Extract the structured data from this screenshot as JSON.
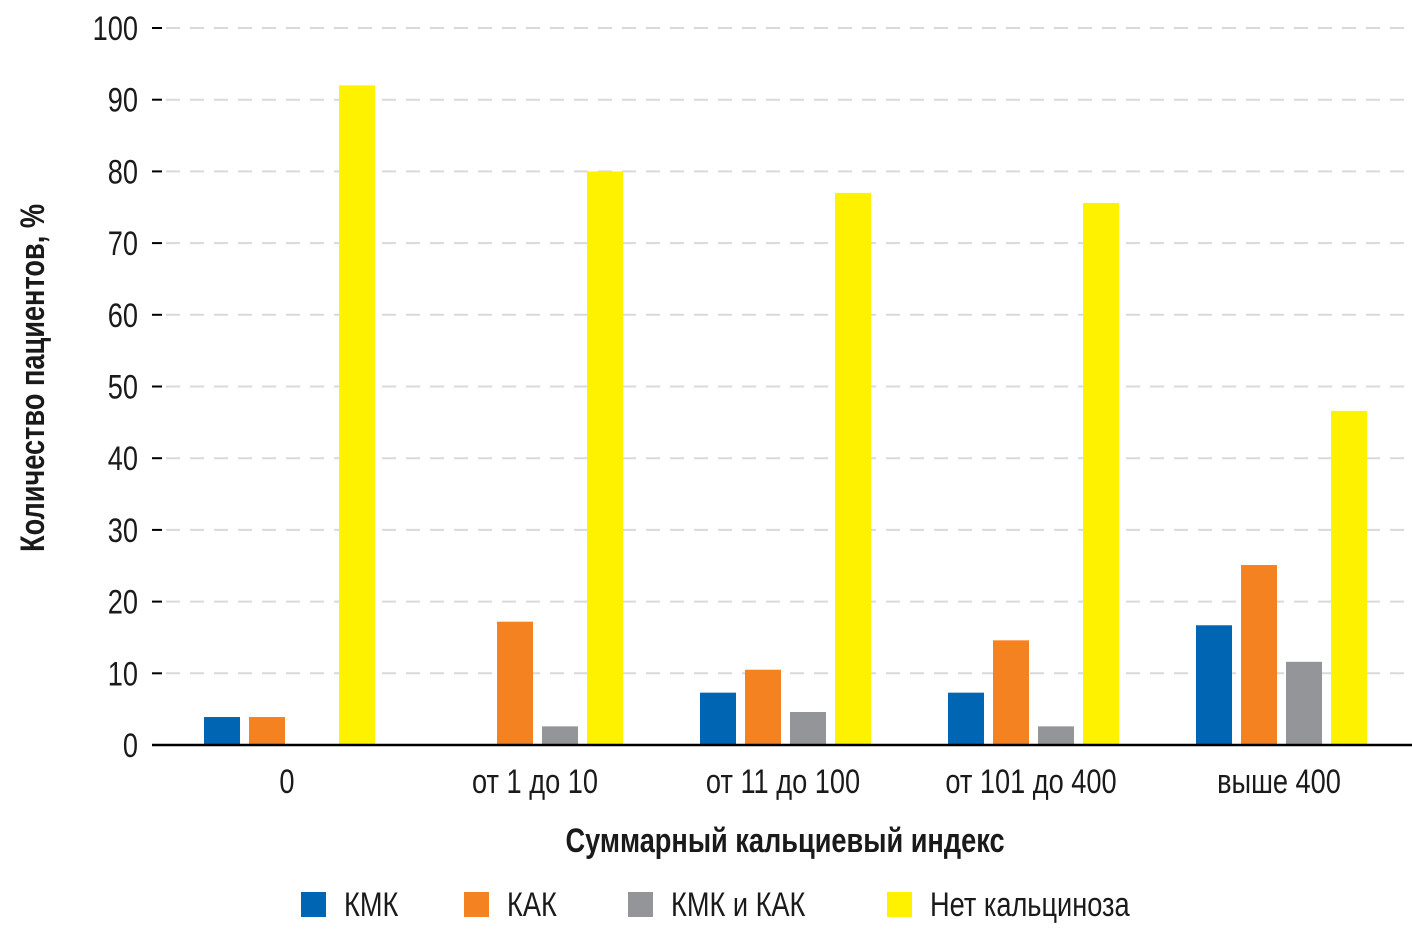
{
  "chart_data": {
    "type": "bar",
    "title": "",
    "xlabel": "Суммарный кальциевый индекс",
    "ylabel": "Количество пациентов, %",
    "ylim": [
      0,
      100
    ],
    "yticks": [
      "0",
      "10",
      "20",
      "30",
      "40",
      "50",
      "60",
      "70",
      "80",
      "90",
      "100"
    ],
    "grid": true,
    "legend_placement": "bottom",
    "categories": [
      "0",
      "от 1 до 10",
      "от 11 до 100",
      "от 101 до 400",
      "выше 400"
    ],
    "series": [
      {
        "name": "КМК",
        "color": "#0066b3",
        "values": [
          3.9,
          0,
          7.3,
          7.3,
          16.7
        ]
      },
      {
        "name": "КАК",
        "color": "#f58220",
        "values": [
          3.9,
          17.2,
          10.5,
          14.6,
          25.1
        ]
      },
      {
        "name": "КМК и КАК",
        "color": "#939598",
        "values": [
          0,
          2.6,
          4.6,
          2.6,
          11.6
        ]
      },
      {
        "name": "Нет кальциноза",
        "color": "#fff200",
        "values": [
          92,
          80,
          77,
          75.6,
          46.6
        ]
      }
    ]
  }
}
